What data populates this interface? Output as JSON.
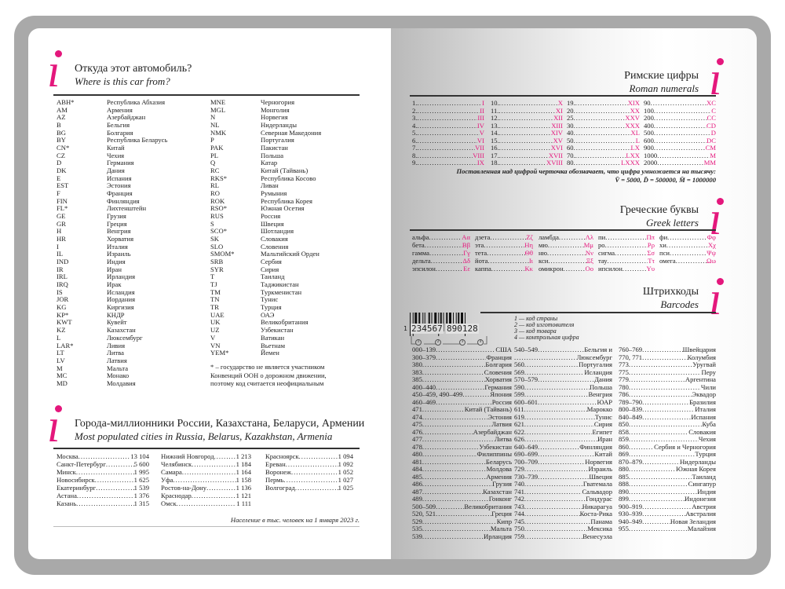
{
  "colors": {
    "accent": "#e4177c",
    "frame": "#a9a9a9"
  },
  "icons": [
    "info-i-icon"
  ],
  "car_codes": {
    "title": "Откуда этот автомобиль?",
    "subtitle": "Where is this car from?",
    "columns": [
      [
        [
          "ABH*",
          "Республика Абхазия"
        ],
        [
          "AM",
          "Армения"
        ],
        [
          "AZ",
          "Азербайджан"
        ],
        [
          "B",
          "Бельгия"
        ],
        [
          "BG",
          "Болгария"
        ],
        [
          "BY",
          "Республика Беларусь"
        ],
        [
          "CN*",
          "Китай"
        ],
        [
          "CZ",
          "Чехия"
        ],
        [
          "D",
          "Германия"
        ],
        [
          "DK",
          "Дания"
        ],
        [
          "E",
          "Испания"
        ],
        [
          "EST",
          "Эстония"
        ],
        [
          "F",
          "Франция"
        ],
        [
          "FIN",
          "Финляндия"
        ],
        [
          "FL*",
          "Лихтенштейн"
        ],
        [
          "GE",
          "Грузия"
        ],
        [
          "GR",
          "Греция"
        ],
        [
          "H",
          "Венгрия"
        ],
        [
          "HR",
          "Хорватия"
        ],
        [
          "I",
          "Италия"
        ],
        [
          "IL",
          "Израиль"
        ],
        [
          "IND",
          "Индия"
        ],
        [
          "IR",
          "Иран"
        ],
        [
          "IRL",
          "Ирландия"
        ],
        [
          "IRQ",
          "Ирак"
        ],
        [
          "IS",
          "Исландия"
        ],
        [
          "JOR",
          "Иордания"
        ],
        [
          "KG",
          "Киргизия"
        ],
        [
          "KP*",
          "КНДР"
        ],
        [
          "KWT",
          "Кувейт"
        ],
        [
          "KZ",
          "Казахстан"
        ],
        [
          "L",
          "Люксембург"
        ],
        [
          "LAR*",
          "Ливия"
        ],
        [
          "LT",
          "Литва"
        ],
        [
          "LV",
          "Латвия"
        ],
        [
          "M",
          "Мальта"
        ],
        [
          "MC",
          "Монако"
        ],
        [
          "MD",
          "Молдавия"
        ]
      ],
      [
        [
          "MNE",
          "Черногория"
        ],
        [
          "MGL",
          "Монголия"
        ],
        [
          "N",
          "Норвегия"
        ],
        [
          "NL",
          "Нидерланды"
        ],
        [
          "NMK",
          "Северная Македония"
        ],
        [
          "P",
          "Португалия"
        ],
        [
          "PAK",
          "Пакистан"
        ],
        [
          "PL",
          "Польша"
        ],
        [
          "Q",
          "Катар"
        ],
        [
          "RC",
          "Китай (Тайвань)"
        ],
        [
          "RKS*",
          "Республика Косово"
        ],
        [
          "RL",
          "Ливан"
        ],
        [
          "RO",
          "Румыния"
        ],
        [
          "ROK",
          "Республика Корея"
        ],
        [
          "RSO*",
          "Южная Осетия"
        ],
        [
          "RUS",
          "Россия"
        ],
        [
          "S",
          "Швеция"
        ],
        [
          "SCO*",
          "Шотландия"
        ],
        [
          "SK",
          "Словакия"
        ],
        [
          "SLO",
          "Словения"
        ],
        [
          "SMOM*",
          "Мальтийский Орден"
        ],
        [
          "SRB",
          "Сербия"
        ],
        [
          "SYR",
          "Сирия"
        ],
        [
          "T",
          "Таиланд"
        ],
        [
          "TJ",
          "Таджикистан"
        ],
        [
          "TM",
          "Туркменистан"
        ],
        [
          "TN",
          "Тунис"
        ],
        [
          "TR",
          "Турция"
        ],
        [
          "UAE",
          "ОАЭ"
        ],
        [
          "UK",
          "Великобритания"
        ],
        [
          "UZ",
          "Узбекистан"
        ],
        [
          "V",
          "Ватикан"
        ],
        [
          "VN",
          "Вьетнам"
        ],
        [
          "YEM*",
          "Йемен"
        ]
      ]
    ],
    "footnote": [
      "* – государство не является участником",
      "Конвенций ООН о дорожном движении,",
      "поэтому код считается неофициальным"
    ]
  },
  "cities": {
    "title": "Города-миллионники России, Казахстана, Беларуси, Армении",
    "subtitle": "Most populated cities in Russia, Belarus, Kazakhstan, Armenia",
    "columns": [
      [
        [
          "Москва",
          "13 104"
        ],
        [
          "Санкт-Петербург",
          "5 600"
        ],
        [
          "Минск",
          "1 995"
        ],
        [
          "Новосибирск",
          "1 625"
        ],
        [
          "Екатеринбург",
          "1 539"
        ],
        [
          "Астана",
          "1 376"
        ],
        [
          "Казань",
          "1 315"
        ]
      ],
      [
        [
          "Нижний Новгород",
          "1 213"
        ],
        [
          "Челябинск",
          "1 184"
        ],
        [
          "Самара",
          "1 164"
        ],
        [
          "Уфа",
          "1 158"
        ],
        [
          "Ростов-на-Дону",
          "1 136"
        ],
        [
          "Краснодар",
          "1 121"
        ],
        [
          "Омск",
          "1 111"
        ]
      ],
      [
        [
          "Красноярск",
          "1 094"
        ],
        [
          "Ереван",
          "1 092"
        ],
        [
          "Воронеж",
          "1 052"
        ],
        [
          "Пермь",
          "1 027"
        ],
        [
          "Волгоград",
          "1 025"
        ]
      ]
    ],
    "note": "Население в тыс. человек на 1 января 2023 г."
  },
  "roman": {
    "title": "Римские цифры",
    "subtitle": "Roman numerals",
    "columns": [
      [
        [
          "1.",
          "I"
        ],
        [
          "2.",
          "II"
        ],
        [
          "3.",
          "III"
        ],
        [
          "4.",
          "IV"
        ],
        [
          "5.",
          "V"
        ],
        [
          "6.",
          "VI"
        ],
        [
          "7.",
          "VII"
        ],
        [
          "8.",
          "VIII"
        ],
        [
          "9.",
          "IX"
        ]
      ],
      [
        [
          "10.",
          "X"
        ],
        [
          "11.",
          "XI"
        ],
        [
          "12.",
          "XII"
        ],
        [
          "13.",
          "XIII"
        ],
        [
          "14.",
          "XIV"
        ],
        [
          "15.",
          "XV"
        ],
        [
          "16.",
          "XVI"
        ],
        [
          "17.",
          "XVII"
        ],
        [
          "18.",
          "XVIII"
        ]
      ],
      [
        [
          "19.",
          "XIX"
        ],
        [
          "20",
          "XX"
        ],
        [
          "25",
          "XXV"
        ],
        [
          "30",
          "XXX"
        ],
        [
          "40",
          "XL"
        ],
        [
          "50",
          "L"
        ],
        [
          "60",
          "LX"
        ],
        [
          "70.",
          "LXX"
        ],
        [
          "80",
          "LXXX"
        ]
      ],
      [
        [
          "90",
          "XC"
        ],
        [
          "100",
          "C"
        ],
        [
          "200",
          "CC"
        ],
        [
          "400",
          "CD"
        ],
        [
          "500",
          "D"
        ],
        [
          "600",
          "DC"
        ],
        [
          "900",
          "CM"
        ],
        [
          "1000",
          "M"
        ],
        [
          "2000",
          "MM"
        ]
      ]
    ],
    "note": [
      "Поставленная над цифрой черточка обозначает, что цифра умножается на тысячу:",
      "V̄ = 5000, D̄ = 500000, M̄ = 1000000"
    ]
  },
  "greek": {
    "title": "Греческие буквы",
    "subtitle": "Greek letters",
    "columns": [
      [
        [
          "альфа",
          "Αα"
        ],
        [
          "бета",
          "Ββ"
        ],
        [
          "гамма",
          "Γγ"
        ],
        [
          "дельта",
          "Δδ"
        ],
        [
          "эпсилон",
          "Εε"
        ]
      ],
      [
        [
          "дзета",
          "Ζζ"
        ],
        [
          "эта",
          "Ηη"
        ],
        [
          "тета",
          "Θθ"
        ],
        [
          "йота",
          "Ιι"
        ],
        [
          "каппа",
          "Κκ"
        ]
      ],
      [
        [
          "ламбда",
          "Λλ"
        ],
        [
          "мю",
          "Μμ"
        ],
        [
          "ню",
          "Νν"
        ],
        [
          "кси",
          "Ξξ"
        ],
        [
          "омикрон",
          "Οο"
        ]
      ],
      [
        [
          "пи",
          "Ππ"
        ],
        [
          "ро",
          "Ρρ"
        ],
        [
          "сигма",
          "Σσ"
        ],
        [
          "тау",
          "Ττ"
        ],
        [
          "ипсилон",
          "Υυ"
        ]
      ],
      [
        [
          "фи",
          "Φφ"
        ],
        [
          "хи",
          "Χχ"
        ],
        [
          "пси",
          "Ψψ"
        ],
        [
          "омега",
          "Ωω"
        ]
      ]
    ]
  },
  "barcodes": {
    "title": "Штрихкоды",
    "subtitle": "Barcodes",
    "sample_digits": {
      "first": "1",
      "group1": "234567",
      "group2": "890128"
    },
    "sample_markers": [
      "1",
      "2",
      "3",
      "4"
    ],
    "legend": [
      "1 — код страны",
      "2 — код изготовителя",
      "3 — код товара",
      "4 — контрольная цифра"
    ],
    "columns": [
      [
        [
          "000–139",
          "США"
        ],
        [
          "300–379",
          "Франция"
        ],
        [
          "380",
          "Болгария"
        ],
        [
          "383",
          "Словения"
        ],
        [
          "385",
          "Хорватия"
        ],
        [
          "400–440",
          "Германия"
        ],
        [
          "450–459, 490–499",
          "Япония"
        ],
        [
          "460–469",
          "Россия"
        ],
        [
          "471",
          "Китай (Тайвань)"
        ],
        [
          "474",
          "Эстония"
        ],
        [
          "475",
          "Латвия"
        ],
        [
          "476",
          "Азербайджан"
        ],
        [
          "477",
          "Литва"
        ],
        [
          "478",
          "Узбекистан"
        ],
        [
          "480",
          "Филиппины"
        ],
        [
          "481",
          "Беларусь"
        ],
        [
          "484",
          "Молдова"
        ],
        [
          "485",
          "Армения"
        ],
        [
          "486",
          "Грузия"
        ],
        [
          "487",
          "Казахстан"
        ],
        [
          "489",
          "Гонконг"
        ],
        [
          "500–509",
          "Великобритания"
        ],
        [
          "520, 521",
          "Греция"
        ],
        [
          "529",
          "Кипр"
        ],
        [
          "535",
          "Мальта"
        ],
        [
          "539",
          "Ирландия"
        ]
      ],
      [
        [
          "540–549",
          "Бельгия и"
        ],
        [
          "",
          "Люксембург"
        ],
        [
          "560",
          "Португалия"
        ],
        [
          "569",
          "Исландия"
        ],
        [
          "570–579",
          "Дания"
        ],
        [
          "590",
          "Польша"
        ],
        [
          "599",
          "Венгрия"
        ],
        [
          "600–601",
          "ЮАР"
        ],
        [
          "611",
          "Марокко"
        ],
        [
          "619",
          "Тунис"
        ],
        [
          "621",
          "Сирия"
        ],
        [
          "622",
          "Египет"
        ],
        [
          "626",
          "Иран"
        ],
        [
          "640–649",
          "Финляндия"
        ],
        [
          "690–699",
          "Китай"
        ],
        [
          "700–709",
          "Норвегия"
        ],
        [
          "729",
          "Израиль"
        ],
        [
          "730–739",
          "Швеция"
        ],
        [
          "740",
          "Гватемала"
        ],
        [
          "741",
          "Сальвадор"
        ],
        [
          "742",
          "Гондурас"
        ],
        [
          "743",
          "Никарагуа"
        ],
        [
          "744",
          "Коста-Рика"
        ],
        [
          "745",
          "Панама"
        ],
        [
          "750",
          "Мексика"
        ],
        [
          "759",
          "Венесуэла"
        ]
      ],
      [
        [
          "760–769",
          "Швейцария"
        ],
        [
          "770, 771",
          "Колумбия"
        ],
        [
          "773",
          "Уругвай"
        ],
        [
          "775",
          "Перу"
        ],
        [
          "779",
          "Аргентина"
        ],
        [
          "780",
          "Чили"
        ],
        [
          "786",
          "Эквадор"
        ],
        [
          "789–790",
          "Бразилия"
        ],
        [
          "800–839",
          "Италия"
        ],
        [
          "840–849",
          "Испания"
        ],
        [
          "850",
          "Куба"
        ],
        [
          "858",
          "Словакия"
        ],
        [
          "859",
          "Чехия"
        ],
        [
          "860",
          "Сербия и Черногория"
        ],
        [
          "869",
          "Турция"
        ],
        [
          "870–879",
          "Нидерланды"
        ],
        [
          "880",
          "Южная Корея"
        ],
        [
          "885",
          "Таиланд"
        ],
        [
          "888",
          "Сингапур"
        ],
        [
          "890",
          "Индия"
        ],
        [
          "899",
          "Индонезия"
        ],
        [
          "900–919",
          "Австрия"
        ],
        [
          "930–939",
          "Австралия"
        ],
        [
          "940–949",
          "Новая Зеландия"
        ],
        [
          "955",
          "Малайзия"
        ]
      ]
    ]
  }
}
